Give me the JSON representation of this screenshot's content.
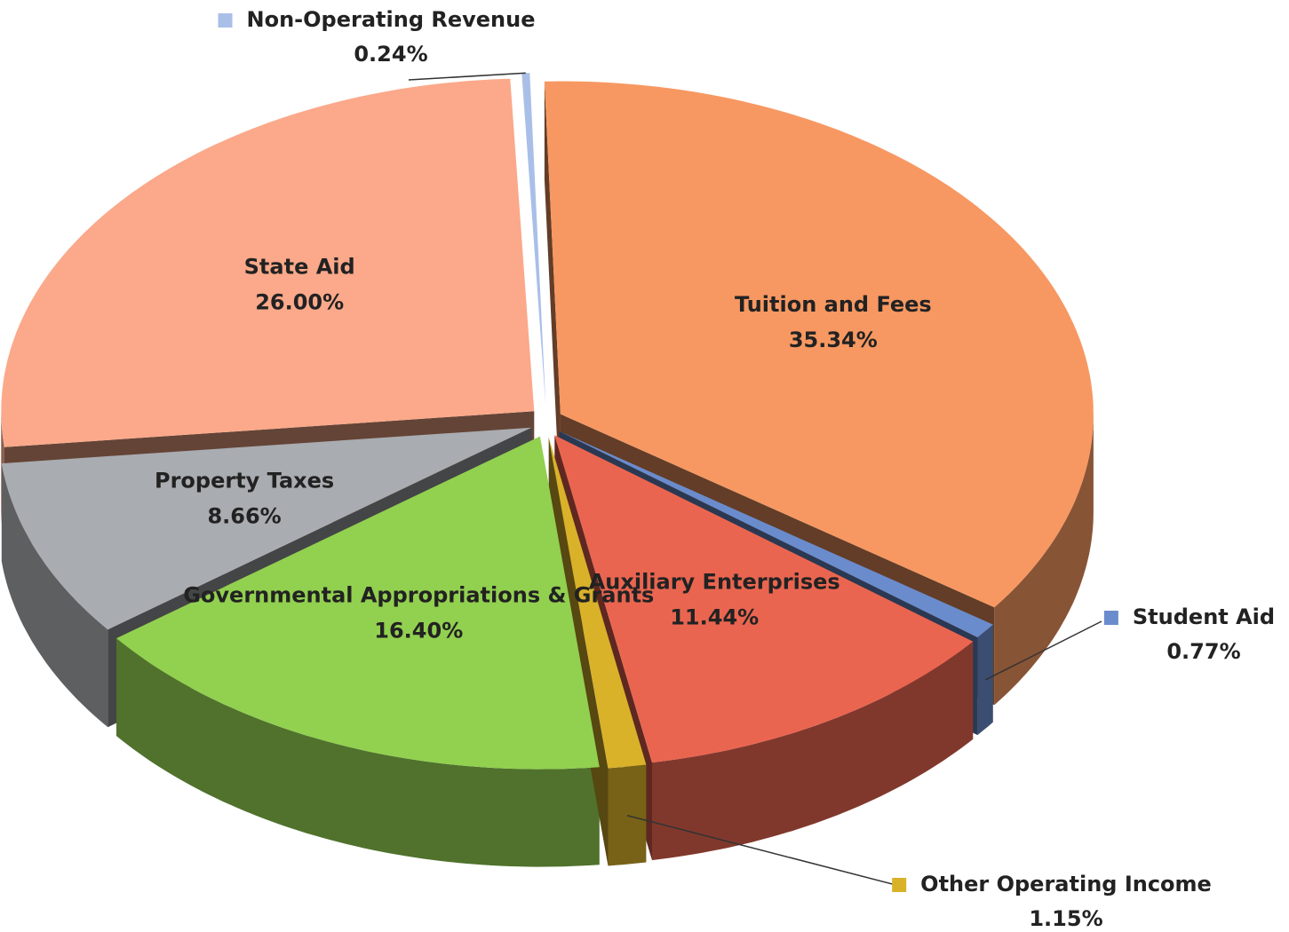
{
  "chart_data": {
    "type": "pie3d",
    "categories": [
      "Tuition and Fees",
      "Student Aid",
      "Auxiliary Enterprises",
      "Other Operating Income",
      "Governmental Appropriations & Grants",
      "Property Taxes",
      "State Aid",
      "Non-Operating Revenue"
    ],
    "values": [
      35.34,
      0.77,
      11.44,
      1.15,
      16.4,
      8.66,
      26.0,
      0.24
    ],
    "value_labels": [
      "35.34%",
      "0.77%",
      "11.44%",
      "1.15%",
      "16.40%",
      "8.66%",
      "26.00%",
      "0.24%"
    ],
    "colors": [
      "#f79862",
      "#6b8ccc",
      "#ea6550",
      "#d9b22a",
      "#92d050",
      "#a9acb0",
      "#fba98a",
      "#a9bfe8"
    ]
  }
}
